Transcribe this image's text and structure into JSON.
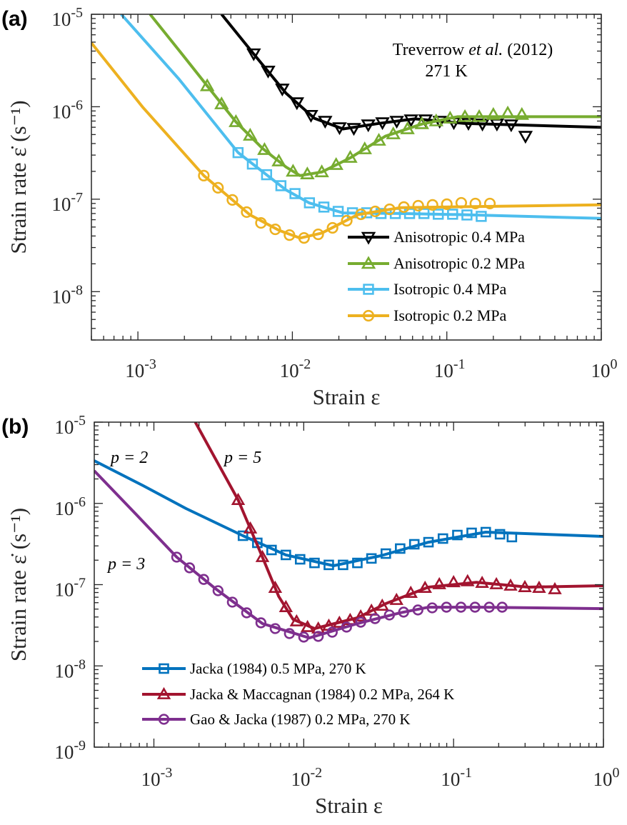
{
  "chart_data": [
    {
      "type": "line",
      "panel_label": "(a)",
      "xlabel": "Strain ε",
      "ylabel": "Strain rate ε̇ (s⁻¹)",
      "xscale": "log",
      "yscale": "log",
      "xlim": [
        0.0005,
        1
      ],
      "ylim": [
        3e-09,
        1e-05
      ],
      "xticks": [
        0.001,
        0.01,
        0.1,
        1
      ],
      "xtick_labels": [
        "10^-3",
        "10^-2",
        "10^-1",
        "10^0"
      ],
      "yticks": [
        1e-08,
        1e-07,
        1e-06,
        1e-05
      ],
      "ytick_labels": [
        "10^-8",
        "10^-7",
        "10^-6",
        "10^-5"
      ],
      "grid": false,
      "legend_placement": "lower-right",
      "annotations": {
        "author": "Treverrow ",
        "etal": "et al.",
        "year": " (2012)",
        "temp": "271 K"
      },
      "series": [
        {
          "name": "Anisotropic 0.4 MPa",
          "color": "#000000",
          "marker": "triangle-down",
          "line": {
            "x": [
              0.00348,
              0.0056,
              0.0091,
              0.0139,
              0.0213,
              0.0363,
              0.062,
              0.13,
              1
            ],
            "y": [
              1e-05,
              3.75e-06,
              1.4e-06,
              7.5e-07,
              5.75e-07,
              6.6e-07,
              7.4e-07,
              6.6e-07,
              6e-07
            ]
          },
          "data": {
            "x": [
              0.00562,
              0.00697,
              0.00861,
              0.0107,
              0.0132,
              0.0163,
              0.0202,
              0.025,
              0.031,
              0.0383,
              0.0474,
              0.0587,
              0.0727,
              0.0899,
              0.111,
              0.138,
              0.17,
              0.211,
              0.261,
              0.323
            ],
            "y": [
              3.75e-06,
              2.44e-06,
              1.56e-06,
              1.11e-06,
              8.1e-07,
              7e-07,
              5.96e-07,
              5.85e-07,
              6.4e-07,
              6.75e-07,
              7e-07,
              7.24e-07,
              7.24e-07,
              7e-07,
              6.75e-07,
              6.64e-07,
              6.52e-07,
              6.52e-07,
              6.4e-07,
              4.81e-07
            ]
          }
        },
        {
          "name": "Anisotropic 0.2 MPa",
          "color": "#77AC30",
          "marker": "triangle-up",
          "line": {
            "x": [
              0.0012,
              0.00184,
              0.00281,
              0.0043,
              0.0064,
              0.0091,
              0.0112,
              0.0155,
              0.0237,
              0.04,
              0.069,
              0.117,
              1
            ],
            "y": [
              1e-05,
              4.1e-06,
              1.68e-06,
              6.9e-07,
              3.55e-07,
              2.23e-07,
              1.8e-07,
              1.97e-07,
              2.8e-07,
              4.8e-07,
              6.5e-07,
              7.8e-07,
              7.8e-07
            ]
          },
          "data": {
            "x": [
              0.00281,
              0.00348,
              0.00431,
              0.00533,
              0.0066,
              0.00817,
              0.0101,
              0.0125,
              0.0155,
              0.0192,
              0.0237,
              0.0294,
              0.0363,
              0.045,
              0.0556,
              0.0689,
              0.0853,
              0.105,
              0.131,
              0.162,
              0.2,
              0.248,
              0.306
            ],
            "y": [
              1.68e-06,
              1.07e-06,
              6.87e-07,
              4.9e-07,
              3.43e-07,
              2.58e-07,
              2e-07,
              1.87e-07,
              1.97e-07,
              2.36e-07,
              2.82e-07,
              3.49e-07,
              4.32e-07,
              5.07e-07,
              5.75e-07,
              6.52e-07,
              7e-07,
              7.5e-07,
              7.79e-07,
              7.79e-07,
              8.22e-07,
              8.51e-07,
              8.22e-07
            ]
          }
        },
        {
          "name": "Isotropic 0.4 MPa",
          "color": "#4DBEEE",
          "marker": "square",
          "line": {
            "x": [
              0.00078,
              0.00184,
              0.00445,
              0.0091,
              0.0129,
              0.0213,
              0.05,
              0.13,
              1
            ],
            "y": [
              1e-05,
              2e-06,
              3.2e-07,
              1.26e-07,
              9.1e-08,
              7.1e-08,
              7e-08,
              6.8e-08,
              6.2e-08
            ]
          },
          "data": {
            "x": [
              0.00445,
              0.00551,
              0.00681,
              0.00843,
              0.0104,
              0.0129,
              0.016,
              0.0198,
              0.0245,
              0.0303,
              0.0375,
              0.0464,
              0.0574,
              0.0711,
              0.088,
              0.109,
              0.135,
              0.167
            ],
            "y": [
              3.19e-07,
              2.4e-07,
              1.84e-07,
              1.4e-07,
              1.15e-07,
              9.14e-08,
              8.22e-08,
              7.38e-08,
              7.13e-08,
              7.13e-08,
              7e-08,
              7e-08,
              7e-08,
              7e-08,
              6.88e-08,
              6.88e-08,
              6.75e-08,
              6.52e-08
            ]
          }
        },
        {
          "name": "Isotropic 0.2 MPa",
          "color": "#EDB120",
          "marker": "circle",
          "line": {
            "x": [
              0.0005,
              0.00108,
              0.00267,
              0.0053,
              0.0082,
              0.0112,
              0.0155,
              0.0264,
              0.05,
              1
            ],
            "y": [
              4.9e-06,
              9.8e-07,
              1.8e-07,
              6.8e-08,
              4.6e-08,
              3.8e-08,
              4.3e-08,
              6.8e-08,
              8.1e-08,
              8.7e-08
            ]
          },
          "data": {
            "x": [
              0.00267,
              0.0033,
              0.00409,
              0.00506,
              0.00626,
              0.00775,
              0.00958,
              0.0119,
              0.0147,
              0.0182,
              0.0225,
              0.0278,
              0.0344,
              0.0426,
              0.0527,
              0.0653,
              0.0808,
              0.1,
              0.124,
              0.153,
              0.19
            ],
            "y": [
              1.8e-07,
              1.33e-07,
              9.82e-08,
              7.25e-08,
              5.54e-08,
              4.72e-08,
              4.09e-08,
              3.81e-08,
              4.17e-08,
              4.9e-08,
              5.85e-08,
              6.87e-08,
              7.38e-08,
              7.78e-08,
              8.22e-08,
              8.51e-08,
              8.67e-08,
              8.83e-08,
              9.14e-08,
              8.98e-08,
              8.98e-08
            ]
          }
        }
      ]
    },
    {
      "type": "line",
      "panel_label": "(b)",
      "xlabel": "Strain ε",
      "ylabel": "Strain rate ε̇ (s⁻¹)",
      "xscale": "log",
      "yscale": "log",
      "xlim": [
        0.0004,
        1
      ],
      "ylim": [
        1e-09,
        1e-05
      ],
      "xticks": [
        0.001,
        0.01,
        0.1,
        1
      ],
      "xtick_labels": [
        "10^-3",
        "10^-2",
        "10^-1",
        "10^0"
      ],
      "yticks": [
        1e-09,
        1e-08,
        1e-07,
        1e-06,
        1e-05
      ],
      "ytick_labels": [
        "10^-9",
        "10^-8",
        "10^-7",
        "10^-6",
        "10^-5"
      ],
      "grid": false,
      "legend_placement": "lower-left",
      "annotations": {
        "p2": "p = 2",
        "p5": "p = 5",
        "p3": "p = 3"
      },
      "series": [
        {
          "name": "Jacka (1984) 0.5 MPa, 270 K",
          "color": "#0072BD",
          "marker": "square",
          "line": {
            "x": [
              0.0004,
              0.000849,
              0.00164,
              0.00393,
              0.0076,
              0.0158,
              0.0327,
              0.068,
              0.164,
              1
            ],
            "y": [
              3.35e-06,
              1.65e-06,
              8.64e-07,
              4e-07,
              2.32e-07,
              1.71e-07,
              2.27e-07,
              3.33e-07,
              4.43e-07,
              3.92e-07
            ]
          },
          "data": {
            "x": [
              0.00393,
              0.0049,
              0.0061,
              0.0076,
              0.00946,
              0.0118,
              0.0147,
              0.0183,
              0.0228,
              0.0283,
              0.0353,
              0.044,
              0.0547,
              0.068,
              0.0849,
              0.106,
              0.132,
              0.164,
              0.204,
              0.245
            ],
            "y": [
              4e-07,
              3.27e-07,
              2.67e-07,
              2.32e-07,
              2.05e-07,
              1.85e-07,
              1.75e-07,
              1.75e-07,
              1.85e-07,
              2.1e-07,
              2.41e-07,
              2.78e-07,
              3.14e-07,
              3.33e-07,
              3.69e-07,
              4.08e-07,
              4.34e-07,
              4.43e-07,
              4.17e-07,
              3.85e-07
            ]
          }
        },
        {
          "name": "Jacka & Maccagnan (1984) 0.2 MPa, 264 K",
          "color": "#A2142F",
          "marker": "triangle-up",
          "line": {
            "x": [
              0.00189,
              0.00254,
              0.00365,
              0.0053,
              0.00681,
              0.00848,
              0.0118,
              0.0228,
              0.0353,
              0.068,
              0.142,
              0.316,
              1
            ],
            "y": [
              1e-05,
              3.71e-06,
              1.1e-06,
              2.18e-07,
              7.16e-08,
              3.75e-08,
              2.88e-08,
              3.9e-08,
              5.85e-08,
              9.31e-08,
              1.07e-07,
              9.31e-08,
              9.7e-08
            ]
          },
          "data": {
            "x": [
              0.00365,
              0.0044,
              0.0053,
              0.00645,
              0.0076,
              0.00896,
              0.0106,
              0.0125,
              0.0147,
              0.0173,
              0.0204,
              0.024,
              0.0283,
              0.0334,
              0.0416,
              0.0518,
              0.0645,
              0.0803,
              0.1,
              0.124,
              0.155,
              0.193,
              0.24,
              0.299,
              0.372,
              0.474
            ],
            "y": [
              1.1e-06,
              4.9e-07,
              2.18e-07,
              9.12e-08,
              5.28e-08,
              3.53e-08,
              3e-08,
              2.88e-08,
              3.12e-08,
              3.39e-08,
              3.67e-08,
              4.06e-08,
              4.78e-08,
              5.5e-08,
              6.47e-08,
              7.92e-08,
              9.12e-08,
              1.01e-07,
              1.07e-07,
              1.1e-07,
              1.05e-07,
              1.01e-07,
              9.7e-08,
              9.31e-08,
              9.12e-08,
              8.77e-08
            ]
          }
        },
        {
          "name": "Gao & Jacka (1987) 0.2 MPa, 270 K",
          "color": "#7E2F8E",
          "marker": "circle",
          "line": {
            "x": [
              0.0004,
              0.00076,
              0.00142,
              0.00254,
              0.0053,
              0.0109,
              0.0228,
              0.044,
              0.068,
              0.152,
              1
            ],
            "y": [
              2.52e-06,
              7.34e-07,
              2.18e-07,
              9.12e-08,
              3.32e-08,
              2.21e-08,
              3.32e-08,
              4.5e-08,
              5.28e-08,
              5.28e-08,
              5.07e-08
            ]
          },
          "data": {
            "x": [
              0.00142,
              0.00173,
              0.00215,
              0.00268,
              0.00334,
              0.00416,
              0.00518,
              0.00645,
              0.00803,
              0.01,
              0.0125,
              0.0155,
              0.0193,
              0.024,
              0.0299,
              0.0373,
              0.0464,
              0.0578,
              0.072,
              0.0896,
              0.112,
              0.139,
              0.173,
              0.211
            ],
            "y": [
              2.18e-07,
              1.61e-07,
              1.16e-07,
              8.42e-08,
              6.09e-08,
              4.5e-08,
              3.39e-08,
              2.88e-08,
              2.5e-08,
              2.26e-08,
              2.31e-08,
              2.6e-08,
              3e-08,
              3.45e-08,
              3.82e-08,
              4.23e-08,
              4.59e-08,
              4.88e-08,
              5.18e-08,
              5.28e-08,
              5.28e-08,
              5.28e-08,
              5.28e-08,
              5.28e-08
            ]
          }
        }
      ]
    }
  ]
}
